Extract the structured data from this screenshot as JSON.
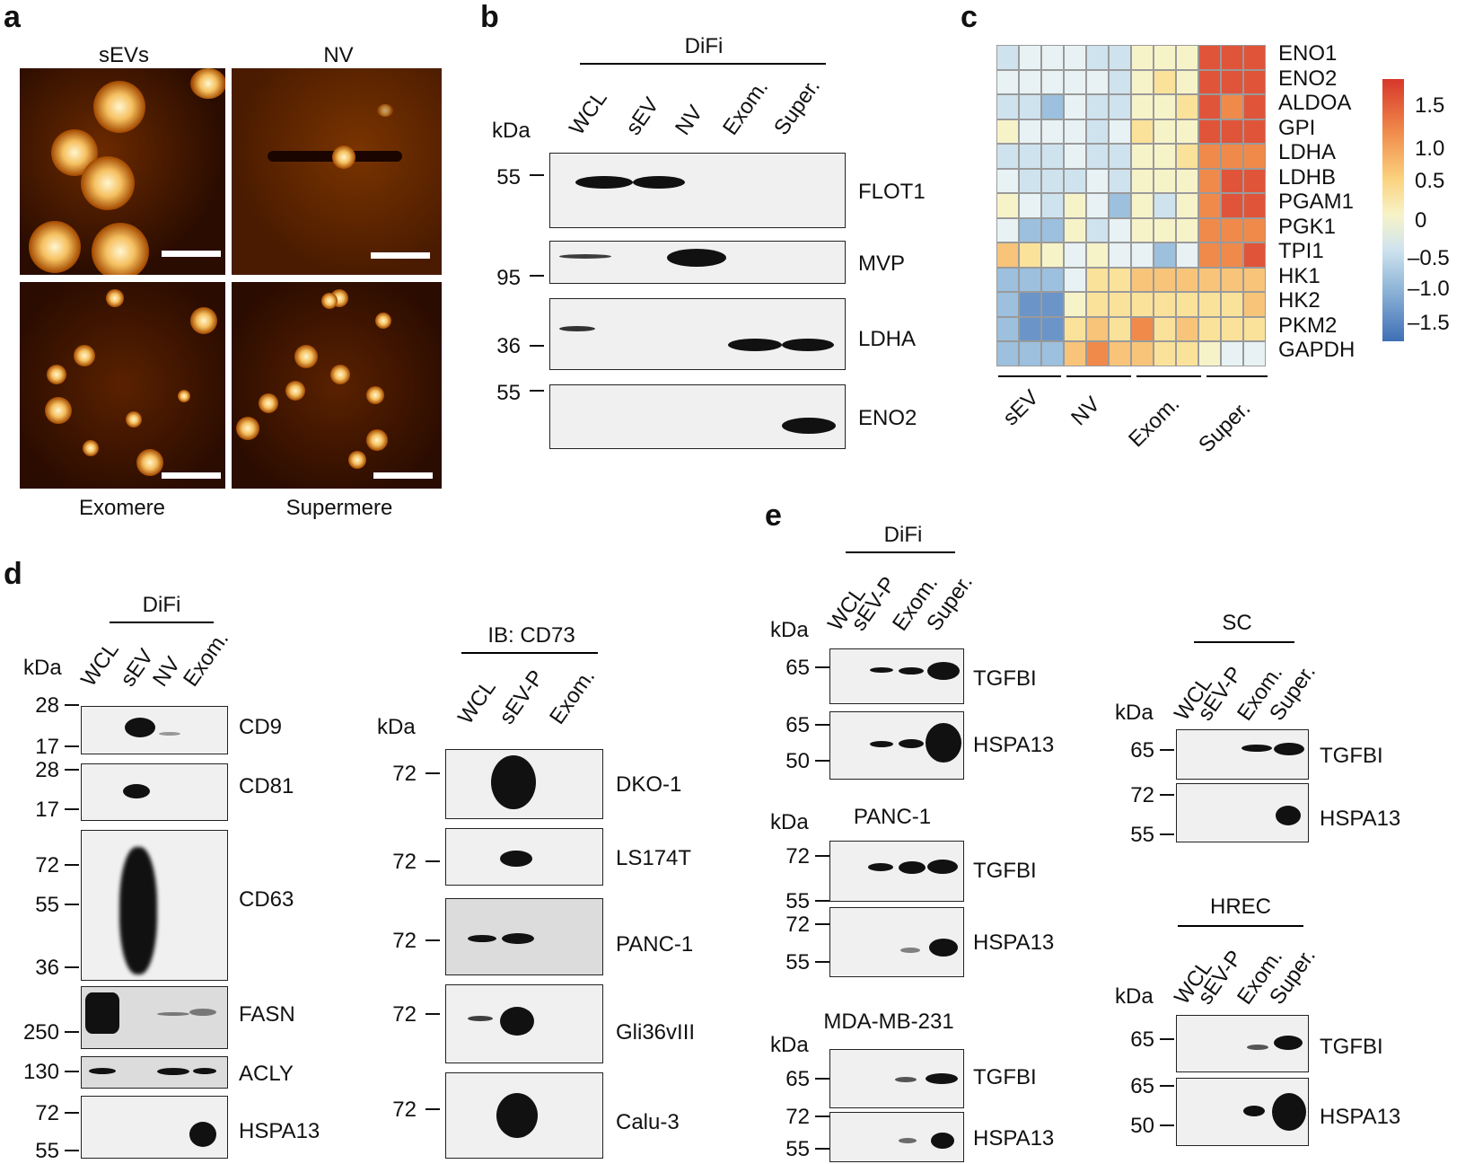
{
  "panels": {
    "a": "a",
    "b": "b",
    "c": "c",
    "d": "d",
    "e": "e"
  },
  "panel_a": {
    "top_left": "sEVs",
    "top_right": "NV",
    "bottom_left": "Exomere",
    "bottom_right": "Supermere"
  },
  "panel_b": {
    "group": "DiFi",
    "kda": "kDa",
    "lanes": [
      "WCL",
      "sEV",
      "NV",
      "Exom.",
      "Super."
    ],
    "blots": [
      {
        "label": "FLOT1",
        "mw": "55"
      },
      {
        "label": "MVP",
        "mw": "95"
      },
      {
        "label": "LDHA",
        "mw": "36"
      },
      {
        "label": "ENO2",
        "mw": "55"
      }
    ]
  },
  "panel_c": {
    "genes": [
      "ENO1",
      "ENO2",
      "ALDOA",
      "GPI",
      "LDHA",
      "LDHB",
      "PGAM1",
      "PGK1",
      "TPI1",
      "HK1",
      "HK2",
      "PKM2",
      "GAPDH"
    ],
    "groups": [
      "sEV",
      "NV",
      "Exom.",
      "Super."
    ],
    "colorbar_ticks": [
      "1.5",
      "1.0",
      "0.5",
      "0",
      "–0.5",
      "–1.0",
      "–1.5"
    ],
    "colors": {
      "high": "#d7372a",
      "mid": "#f7f3c9",
      "low": "#3f6fb6"
    }
  },
  "panel_d1": {
    "group": "DiFi",
    "kda": "kDa",
    "lanes": [
      "WCL",
      "sEV",
      "NV",
      "Exom."
    ],
    "blots": [
      {
        "label": "CD9",
        "mws": [
          "28",
          "17"
        ]
      },
      {
        "label": "CD81",
        "mws": [
          "28",
          "17"
        ]
      },
      {
        "label": "CD63",
        "mws": [
          "72",
          "55",
          "36"
        ]
      },
      {
        "label": "FASN",
        "mws": [
          "250"
        ]
      },
      {
        "label": "ACLY",
        "mws": [
          "130"
        ]
      },
      {
        "label": "HSPA13",
        "mws": [
          "72",
          "55"
        ]
      }
    ]
  },
  "panel_d2": {
    "group": "IB: CD73",
    "kda": "kDa",
    "lanes": [
      "WCL",
      "sEV-P",
      "Exom."
    ],
    "blots": [
      {
        "label": "DKO-1",
        "mw": "72"
      },
      {
        "label": "LS174T",
        "mw": "72"
      },
      {
        "label": "PANC-1",
        "mw": "72"
      },
      {
        "label": "Gli36vIII",
        "mw": "72"
      },
      {
        "label": "Calu-3",
        "mw": "72"
      }
    ]
  },
  "panel_e": {
    "lanes": [
      "WCL",
      "sEV-P",
      "Exom.",
      "Super."
    ],
    "kda": "kDa",
    "difi": {
      "title": "DiFi",
      "blots": [
        {
          "label": "TGFBI",
          "mws": [
            "65"
          ]
        },
        {
          "label": "HSPA13",
          "mws": [
            "65",
            "50"
          ]
        }
      ]
    },
    "panc": {
      "title": "PANC-1",
      "blots": [
        {
          "label": "TGFBI",
          "mws": [
            "72",
            "55"
          ]
        },
        {
          "label": "HSPA13",
          "mws": [
            "72",
            "55"
          ]
        }
      ]
    },
    "mda": {
      "title": "MDA-MB-231",
      "blots": [
        {
          "label": "TGFBI",
          "mws": [
            "65"
          ]
        },
        {
          "label": "HSPA13",
          "mws": [
            "72",
            "55"
          ]
        }
      ]
    },
    "sc": {
      "title": "SC",
      "blots": [
        {
          "label": "TGFBI",
          "mws": [
            "65"
          ]
        },
        {
          "label": "HSPA13",
          "mws": [
            "72",
            "55"
          ]
        }
      ]
    },
    "hrec": {
      "title": "HREC",
      "blots": [
        {
          "label": "TGFBI",
          "mws": [
            "65"
          ]
        },
        {
          "label": "HSPA13",
          "mws": [
            "65",
            "50"
          ]
        }
      ]
    }
  }
}
